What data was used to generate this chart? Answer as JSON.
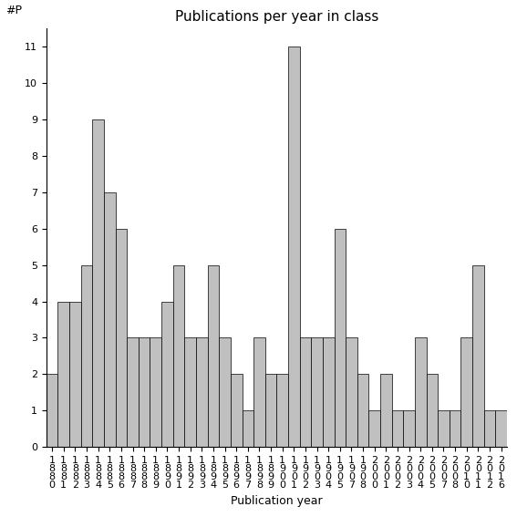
{
  "title": "Publications per year in class",
  "xlabel": "Publication year",
  "ylabel": "#P",
  "categories": [
    "1880",
    "1881",
    "1882",
    "1883",
    "1884",
    "1885",
    "1886",
    "1887",
    "1888",
    "1889",
    "1890",
    "1891",
    "1892",
    "1893",
    "1894",
    "1895",
    "1896",
    "1897",
    "1898",
    "1899",
    "1900",
    "1901",
    "1902",
    "1903",
    "1904",
    "1905",
    "1907",
    "1908",
    "2000",
    "2001",
    "2002",
    "2003",
    "2004",
    "2005",
    "2007",
    "2008",
    "2010",
    "2011",
    "2012",
    "2016"
  ],
  "values": [
    2,
    4,
    4,
    5,
    9,
    7,
    6,
    3,
    3,
    3,
    4,
    5,
    3,
    3,
    5,
    3,
    2,
    1,
    3,
    2,
    2,
    11,
    3,
    3,
    3,
    6,
    3,
    2,
    1,
    2,
    1,
    1,
    3,
    2,
    1,
    1,
    3,
    5,
    1,
    1
  ],
  "bar_color": "#c0c0c0",
  "bar_edge_color": "#000000",
  "yticks": [
    0,
    1,
    2,
    3,
    4,
    5,
    6,
    7,
    8,
    9,
    10,
    11
  ],
  "bg_color": "#ffffff",
  "title_fontsize": 11,
  "axis_label_fontsize": 9,
  "tick_fontsize": 8,
  "xlabel_fontsize": 9
}
